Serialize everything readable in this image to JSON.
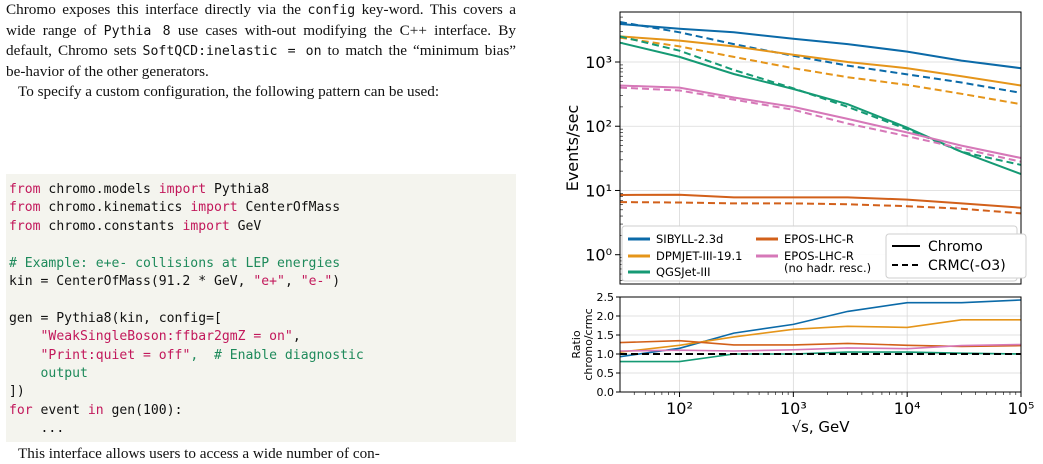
{
  "text": {
    "p1_a": "Chromo exposes this interface directly via the ",
    "p1_code1": "config",
    "p1_b": " key-word. This covers a wide range of ",
    "p1_code2": "Pythia 8",
    "p1_c": " use cases with-out modifying the C++ interface. By default, Chromo sets ",
    "p1_code3": "SoftQCD:inelastic = on",
    "p1_d": " to match the “minimum bias” be-havior of the other generators.",
    "p2": "To specify a custom configuration, the following pattern can be used:",
    "p3_partial": "This interface allows users to access a wide number of con-"
  },
  "code": {
    "l1": [
      "from",
      " chromo.models ",
      "import",
      " Pythia8"
    ],
    "l2": [
      "from",
      " chromo.kinematics ",
      "import",
      " CenterOfMass"
    ],
    "l3": [
      "from",
      " chromo.constants ",
      "import",
      " GeV"
    ],
    "l5": "# Example: e+e- collisions at LEP energies",
    "l6a": "kin = CenterOfMass(91.2 * GeV, ",
    "l6s1": "\"e+\"",
    "l6m": ", ",
    "l6s2": "\"e-\"",
    "l6b": ")",
    "l8": "gen = Pythia8(kin, config=[",
    "l9": "\"WeakSingleBoson:ffbar2gmZ = on\"",
    "l9b": ",",
    "l10s": "\"Print:quiet = off\"",
    "l10c": ",  # Enable diagnostic",
    "l11": "output",
    "l12": "])",
    "l13a": "for",
    "l13b": " event ",
    "l13c": "in",
    "l13d": " gen(100):",
    "l14": "..."
  },
  "chart_data": [
    {
      "type": "line",
      "ylabel": "Events/sec",
      "yscale": "log",
      "xscale": "log",
      "xlim": [
        30,
        100000
      ],
      "ylim": [
        0.35,
        6000
      ],
      "yticks": [
        {
          "v": 1,
          "label": "10⁰"
        },
        {
          "v": 10,
          "label": "10¹"
        },
        {
          "v": 100,
          "label": "10²"
        },
        {
          "v": 1000,
          "label": "10³"
        }
      ],
      "x": [
        30,
        100,
        300,
        1000,
        3000,
        10000,
        30000,
        100000
      ],
      "series": [
        {
          "name": "SIBYLL-2.3d",
          "color": "#0b6aa8",
          "style": "solid",
          "values": [
            3900,
            3300,
            2900,
            2300,
            1900,
            1450,
            1050,
            800
          ]
        },
        {
          "name": "SIBYLL-2.3d",
          "color": "#0b6aa8",
          "style": "dashed",
          "values": [
            4200,
            2900,
            1900,
            1250,
            880,
            640,
            480,
            330
          ]
        },
        {
          "name": "DPMJET-III-19.1",
          "color": "#e5951a",
          "style": "solid",
          "values": [
            2500,
            2150,
            1750,
            1300,
            1000,
            800,
            600,
            430
          ]
        },
        {
          "name": "DPMJET-III-19.1",
          "color": "#e5951a",
          "style": "dashed",
          "values": [
            2400,
            1750,
            1200,
            800,
            580,
            440,
            320,
            220
          ]
        },
        {
          "name": "QGSJet-III",
          "color": "#159a74",
          "style": "solid",
          "values": [
            2000,
            1200,
            650,
            380,
            220,
            95,
            40,
            18
          ]
        },
        {
          "name": "QGSJet-III",
          "color": "#159a74",
          "style": "dashed",
          "values": [
            2500,
            1500,
            750,
            390,
            200,
            90,
            40,
            25
          ]
        },
        {
          "name": "EPOS-LHC-R",
          "color": "#d2601a",
          "style": "solid",
          "values": [
            8.5,
            8.6,
            7.8,
            7.8,
            7.8,
            7.2,
            6.3,
            5.4
          ]
        },
        {
          "name": "EPOS-LHC-R",
          "color": "#d2601a",
          "style": "dashed",
          "values": [
            6.6,
            6.5,
            6.3,
            6.3,
            6.1,
            5.7,
            5.2,
            4.4
          ]
        },
        {
          "name": "EPOS-LHC-R (no hadr. resc.)",
          "color": "#d678b8",
          "style": "solid",
          "values": [
            430,
            400,
            280,
            200,
            130,
            80,
            50,
            32
          ]
        },
        {
          "name": "EPOS-LHC-R (no hadr. resc.)",
          "color": "#d678b8",
          "style": "dashed",
          "values": [
            400,
            360,
            260,
            180,
            110,
            70,
            45,
            28
          ]
        }
      ],
      "legend": {
        "placement": "lower-left",
        "entries": [
          {
            "label": "SIBYLL-2.3d",
            "color": "#0b6aa8"
          },
          {
            "label": "DPMJET-III-19.1",
            "color": "#e5951a"
          },
          {
            "label": "QGSJet-III",
            "color": "#159a74"
          },
          {
            "label": "EPOS-LHC-R",
            "color": "#d2601a"
          },
          {
            "label": "EPOS-LHC-R",
            "label2": "(no hadr. resc.)",
            "color": "#d678b8"
          }
        ],
        "style_entries": [
          {
            "label": "Chromo",
            "style": "solid"
          },
          {
            "label": "CRMC(-O3)",
            "style": "dashed"
          }
        ]
      },
      "grid": true
    },
    {
      "type": "line",
      "ylabel": "Ratio",
      "ylabel2": "chromo/crmc",
      "xlabel": "√s, GeV",
      "xscale": "log",
      "xlim": [
        30,
        100000
      ],
      "ylim": [
        0,
        2.5
      ],
      "yticks": [
        {
          "v": 0.0,
          "label": "0.0"
        },
        {
          "v": 0.5,
          "label": "0.5"
        },
        {
          "v": 1.0,
          "label": "1.0"
        },
        {
          "v": 1.5,
          "label": "1.5"
        },
        {
          "v": 2.0,
          "label": "2.0"
        },
        {
          "v": 2.5,
          "label": "2.5"
        }
      ],
      "xticks": [
        {
          "v": 100,
          "label": "10²"
        },
        {
          "v": 1000,
          "label": "10³"
        },
        {
          "v": 10000,
          "label": "10⁴"
        },
        {
          "v": 100000,
          "label": "10⁵"
        }
      ],
      "x": [
        30,
        100,
        300,
        1000,
        3000,
        10000,
        30000,
        100000
      ],
      "reference": 1.0,
      "series": [
        {
          "name": "SIBYLL-2.3d",
          "color": "#0b6aa8",
          "values": [
            0.93,
            1.15,
            1.55,
            1.78,
            2.12,
            2.35,
            2.35,
            2.42
          ]
        },
        {
          "name": "DPMJET-III-19.1",
          "color": "#e5951a",
          "values": [
            1.05,
            1.23,
            1.45,
            1.65,
            1.73,
            1.7,
            1.9,
            1.9
          ]
        },
        {
          "name": "QGSJet-III",
          "color": "#159a74",
          "values": [
            0.8,
            0.8,
            1.0,
            1.0,
            1.05,
            1.05,
            1.02,
            1.0
          ]
        },
        {
          "name": "EPOS-LHC-R",
          "color": "#d2601a",
          "values": [
            1.3,
            1.35,
            1.24,
            1.24,
            1.28,
            1.23,
            1.2,
            1.22
          ]
        },
        {
          "name": "EPOS-LHC-R (no hadr. resc.)",
          "color": "#d678b8",
          "values": [
            1.08,
            1.1,
            1.08,
            1.11,
            1.16,
            1.14,
            1.22,
            1.25
          ]
        }
      ],
      "grid": true
    }
  ]
}
